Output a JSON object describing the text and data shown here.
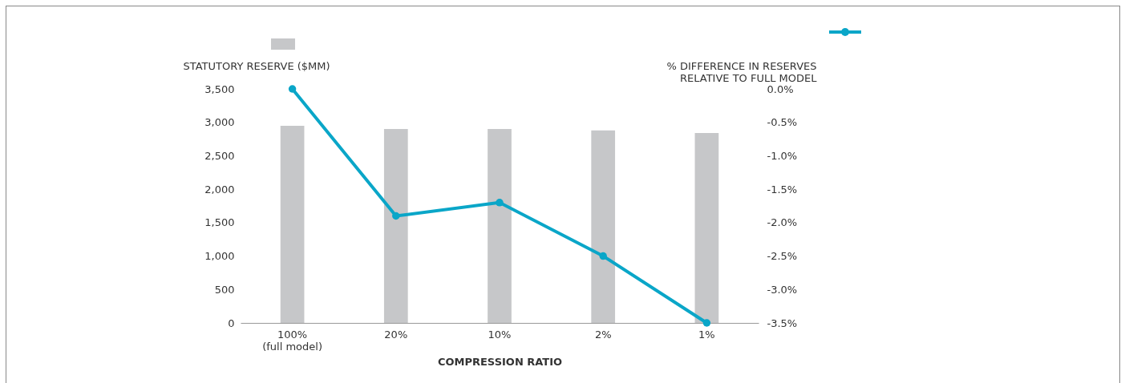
{
  "chart_data": {
    "type": "bar",
    "xlabel": "COMPRESSION RATIO",
    "ylabel": "STATUTORY RESERVE ($MM)",
    "y2label": "% DIFFERENCE IN RESERVES\nRELATIVE TO FULL MODEL",
    "categories": [
      "100%\n(full model)",
      "20%",
      "10%",
      "2%",
      "1%"
    ],
    "series": [
      {
        "color": "#c6c7c9",
        "values": [
          2950,
          2900,
          2900,
          2880,
          2840
        ]
      },
      {
        "type": "line",
        "axis": "y2",
        "color": "#0aa6c8",
        "values": [
          0,
          -1.9,
          -1.7,
          -2.5,
          -3.5
        ]
      }
    ],
    "ylim": [
      0,
      3500
    ],
    "yticks": [
      0,
      500,
      {
        "value": 1000,
        "label": "1,000"
      },
      {
        "value": 1500,
        "label": "1,500"
      },
      {
        "value": 2000,
        "label": "2,000"
      },
      {
        "value": 2500,
        "label": "2,500"
      },
      {
        "value": 3000,
        "label": "3,000"
      },
      {
        "value": 3500,
        "label": "3,500"
      }
    ],
    "y2lim": [
      -3.5,
      0
    ],
    "y2ticks": [
      {
        "value": -3.5,
        "label": "-3.5%"
      },
      {
        "value": -3,
        "label": "-3.0%"
      },
      {
        "value": -2.5,
        "label": "-2.5%"
      },
      {
        "value": -2,
        "label": "-2.0%"
      },
      {
        "value": -1.5,
        "label": "-1.5%"
      },
      {
        "value": -1,
        "label": "-1.0%"
      },
      {
        "value": -0.5,
        "label": "-0.5%"
      },
      {
        "value": 0,
        "label": "0.0%"
      }
    ],
    "grid": false,
    "marker": "circle",
    "line_style": "solid"
  }
}
